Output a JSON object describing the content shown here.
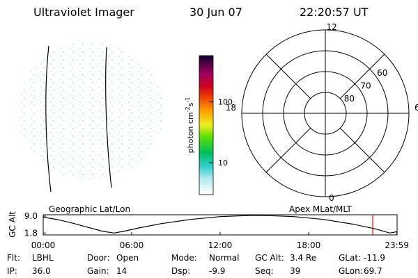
{
  "header": {
    "title": "Ultraviolet Imager",
    "date": "30 Jun 07",
    "time": "22:20:57 UT"
  },
  "image_panel": {
    "label": "Geographic Lat/Lon"
  },
  "colorbar": {
    "label": {
      "text": "photon cm",
      "exp1": "-2",
      "unit2": "s",
      "exp2": "-1"
    },
    "log": true,
    "clim": [
      3,
      575
    ],
    "ticks": [
      10,
      100
    ]
  },
  "polar": {
    "label": "Apex MLat/MLT",
    "rlim": [
      90,
      50
    ],
    "lat_rings": [
      80,
      70,
      60
    ],
    "mlt_ticks": [
      12,
      6,
      0,
      18
    ]
  },
  "chart_data": {
    "type": "line",
    "y_label": "GC Alt",
    "x": [
      0,
      1,
      2,
      3,
      4,
      4.8,
      5.5,
      6.5,
      8,
      10,
      12,
      14,
      15,
      17,
      19,
      21,
      22.5,
      23.5,
      24
    ],
    "values": [
      8.6,
      7.5,
      6.0,
      4.3,
      2.6,
      1.8,
      2.6,
      4.0,
      5.8,
      7.6,
      8.8,
      9.3,
      9.3,
      8.8,
      7.6,
      5.6,
      3.6,
      1.8,
      2.4
    ],
    "color": "#000000",
    "marker_x": 22.349,
    "marker_color": "#e00000",
    "xlim": [
      0,
      24
    ],
    "ylim": [
      1.0,
      9.6
    ],
    "yticks": [
      {
        "value": 9.0,
        "label": "9.0"
      },
      1.8
    ],
    "xticks": [
      {
        "value": 0,
        "label": "00:00"
      },
      {
        "value": 6,
        "label": "06:00"
      },
      {
        "value": 12,
        "label": "12:00"
      },
      {
        "value": 18,
        "label": "18:00"
      },
      {
        "value": 23.983,
        "label": "23:59"
      }
    ]
  },
  "info": [
    [
      {
        "label": "Flt:",
        "value": "LBHL"
      },
      {
        "label": "IP:",
        "value": "36.0"
      }
    ],
    [
      {
        "label": "Door:",
        "value": "Open"
      },
      {
        "label": "Gain:",
        "value": "14"
      }
    ],
    [
      {
        "label": "Mode:",
        "value": "Normal"
      },
      {
        "label": "Dsp:",
        "value": "-9.9"
      }
    ],
    [
      {
        "label": "GC Alt:",
        "value": "3.4 Re"
      },
      {
        "label": "Seq:",
        "value": "39"
      }
    ],
    [
      {
        "label": "GLat:",
        "value": "-11.9"
      },
      {
        "label": "GLon:",
        "value": "69.7"
      }
    ]
  ]
}
